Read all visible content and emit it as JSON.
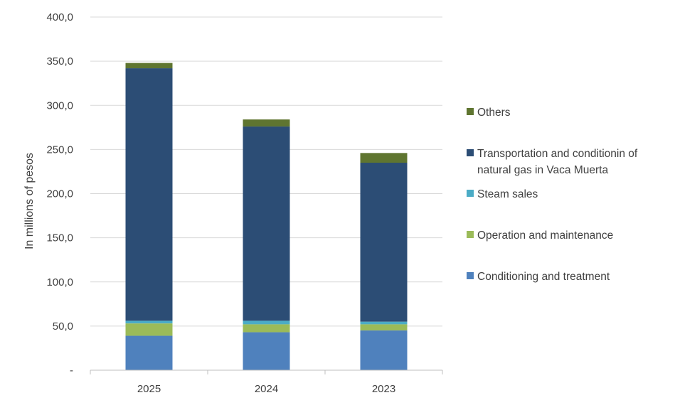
{
  "chart_data": {
    "type": "bar",
    "stacked": true,
    "title": "",
    "xlabel": "",
    "ylabel": "In millions of pesos",
    "ylim": [
      0,
      400
    ],
    "yticks": [
      0,
      50,
      100,
      150,
      200,
      250,
      300,
      350,
      400
    ],
    "ytick_labels": [
      "-",
      "50,0",
      "100,0",
      "150,0",
      "200,0",
      "250,0",
      "300,0",
      "350,0",
      "400,0"
    ],
    "grid": "horizontal",
    "legend_position": "right",
    "categories": [
      "2025",
      "2024",
      "2023"
    ],
    "series": [
      {
        "name": "Conditioning and treatment",
        "color": "#4f81bd",
        "values": [
          39,
          43,
          45
        ]
      },
      {
        "name": "Operation and maintenance",
        "color": "#9bbb59",
        "values": [
          14,
          9,
          7
        ]
      },
      {
        "name": "Steam sales",
        "color": "#4bacc6",
        "values": [
          3,
          4,
          3
        ]
      },
      {
        "name": "Transportation and conditionin of natural gas in Vaca Muerta",
        "legend_lines": [
          "Transportation and conditionin of",
          "natural gas in Vaca Muerta"
        ],
        "color": "#2c4d75",
        "values": [
          286,
          220,
          180
        ]
      },
      {
        "name": "Others",
        "color": "#5f7530",
        "values": [
          6,
          8,
          11
        ]
      }
    ]
  }
}
